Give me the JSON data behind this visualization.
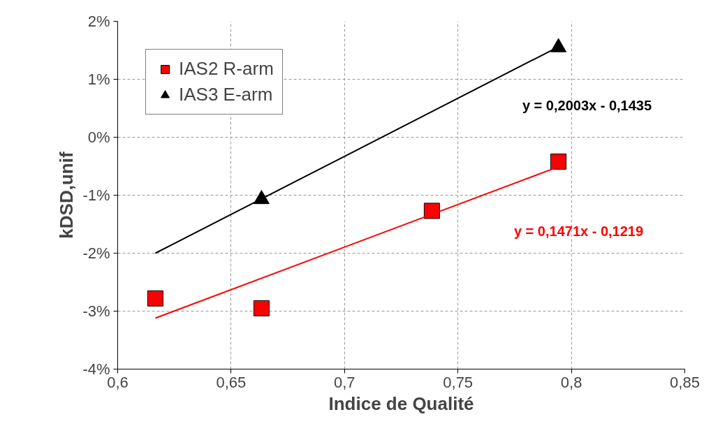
{
  "chart_data": {
    "type": "scatter",
    "xlabel": "Indice de Qualité",
    "ylabel": "kDSD,unif",
    "xlim": [
      0.6,
      0.85
    ],
    "xticks": [
      {
        "value": 0.6,
        "label": "0,6"
      },
      {
        "value": 0.65,
        "label": "0,65"
      },
      {
        "value": 0.7,
        "label": "0,7"
      },
      {
        "value": 0.75,
        "label": "0,75"
      },
      {
        "value": 0.8,
        "label": "0,8"
      },
      {
        "value": 0.85,
        "label": "0,85"
      }
    ],
    "ylim": [
      -4,
      2
    ],
    "yticks": [
      {
        "value": -4,
        "label": "-4%"
      },
      {
        "value": -3,
        "label": "-3%"
      },
      {
        "value": -2,
        "label": "-2%"
      },
      {
        "value": -1,
        "label": "-1%"
      },
      {
        "value": 0,
        "label": "0%"
      },
      {
        "value": 1,
        "label": "1%"
      },
      {
        "value": 2,
        "label": "2%"
      }
    ],
    "grid": true,
    "legend": "top left",
    "series": [
      {
        "name": "IAS2 R-arm",
        "marker": "square",
        "color": "#ff0000",
        "x": [
          0.6166,
          0.6634,
          0.7385,
          0.7943
        ],
        "values": [
          -2.78,
          -2.95,
          -1.27,
          -0.42
        ]
      },
      {
        "name": "IAS3 E-arm",
        "marker": "triangle",
        "color": "#000000",
        "x": [
          0.6634,
          0.7943
        ],
        "values": [
          -1.07,
          1.55
        ]
      },
      {
        "type": "line",
        "color": "#ff0000",
        "x": [
          0.6166,
          0.7943
        ],
        "values": [
          -3.12,
          -0.51
        ]
      },
      {
        "type": "line",
        "color": "#000000",
        "x": [
          0.6166,
          0.7943
        ],
        "values": [
          -2.0,
          1.56
        ]
      }
    ],
    "annotations": [
      "y = 0,2003x - 0,1435",
      "y = 0,1471x - 0,1219"
    ]
  }
}
